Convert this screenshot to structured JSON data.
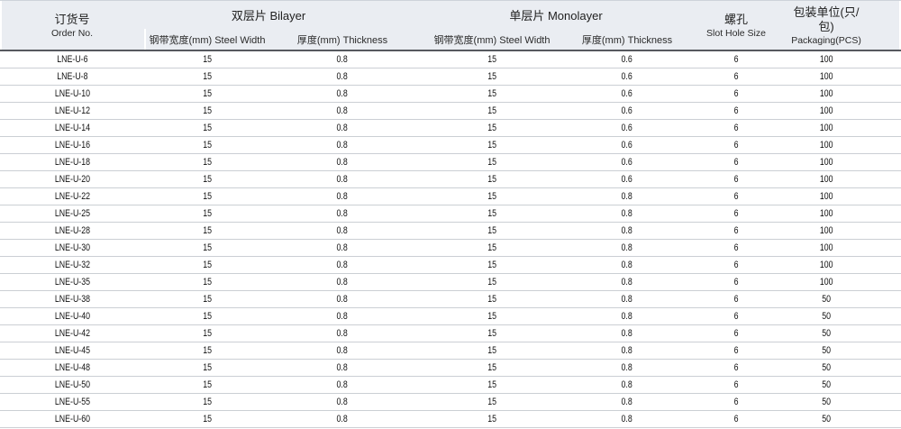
{
  "header": {
    "order_no": {
      "zh": "订货号",
      "en": "Order No."
    },
    "bilayer_group": "双层片 Bilayer",
    "monolayer_group": "单层片 Monolayer",
    "bilayer_steel_width": "钢带宽度(mm) Steel Width",
    "bilayer_thickness": "厚度(mm) Thickness",
    "monolayer_steel_width": "钢带宽度(mm) Steel Width",
    "monolayer_thickness": "厚度(mm) Thickness",
    "slot_hole": {
      "zh": "螺孔",
      "en": "Slot Hole Size"
    },
    "packaging": {
      "zh": "包装单位(只/包)",
      "en": "Packaging(PCS)"
    }
  },
  "table": {
    "columns": [
      "order_no",
      "bilayer_steel_width",
      "bilayer_thickness",
      "monolayer_steel_width",
      "monolayer_thickness",
      "slot_hole",
      "packaging"
    ],
    "rows": [
      [
        "LNE-U-6",
        "15",
        "0.8",
        "15",
        "0.6",
        "6",
        "100"
      ],
      [
        "LNE-U-8",
        "15",
        "0.8",
        "15",
        "0.6",
        "6",
        "100"
      ],
      [
        "LNE-U-10",
        "15",
        "0.8",
        "15",
        "0.6",
        "6",
        "100"
      ],
      [
        "LNE-U-12",
        "15",
        "0.8",
        "15",
        "0.6",
        "6",
        "100"
      ],
      [
        "LNE-U-14",
        "15",
        "0.8",
        "15",
        "0.6",
        "6",
        "100"
      ],
      [
        "LNE-U-16",
        "15",
        "0.8",
        "15",
        "0.6",
        "6",
        "100"
      ],
      [
        "LNE-U-18",
        "15",
        "0.8",
        "15",
        "0.6",
        "6",
        "100"
      ],
      [
        "LNE-U-20",
        "15",
        "0.8",
        "15",
        "0.6",
        "6",
        "100"
      ],
      [
        "LNE-U-22",
        "15",
        "0.8",
        "15",
        "0.8",
        "6",
        "100"
      ],
      [
        "LNE-U-25",
        "15",
        "0.8",
        "15",
        "0.8",
        "6",
        "100"
      ],
      [
        "LNE-U-28",
        "15",
        "0.8",
        "15",
        "0.8",
        "6",
        "100"
      ],
      [
        "LNE-U-30",
        "15",
        "0.8",
        "15",
        "0.8",
        "6",
        "100"
      ],
      [
        "LNE-U-32",
        "15",
        "0.8",
        "15",
        "0.8",
        "6",
        "100"
      ],
      [
        "LNE-U-35",
        "15",
        "0.8",
        "15",
        "0.8",
        "6",
        "100"
      ],
      [
        "LNE-U-38",
        "15",
        "0.8",
        "15",
        "0.8",
        "6",
        "50"
      ],
      [
        "LNE-U-40",
        "15",
        "0.8",
        "15",
        "0.8",
        "6",
        "50"
      ],
      [
        "LNE-U-42",
        "15",
        "0.8",
        "15",
        "0.8",
        "6",
        "50"
      ],
      [
        "LNE-U-45",
        "15",
        "0.8",
        "15",
        "0.8",
        "6",
        "50"
      ],
      [
        "LNE-U-48",
        "15",
        "0.8",
        "15",
        "0.8",
        "6",
        "50"
      ],
      [
        "LNE-U-50",
        "15",
        "0.8",
        "15",
        "0.8",
        "6",
        "50"
      ],
      [
        "LNE-U-55",
        "15",
        "0.8",
        "15",
        "0.8",
        "6",
        "50"
      ],
      [
        "LNE-U-60",
        "15",
        "0.8",
        "15",
        "0.8",
        "6",
        "50"
      ]
    ]
  },
  "colors": {
    "header_bg": "#eaedf2",
    "header_divider": "#56595e",
    "row_divider": "#cbcfd4",
    "text": "#111111"
  }
}
